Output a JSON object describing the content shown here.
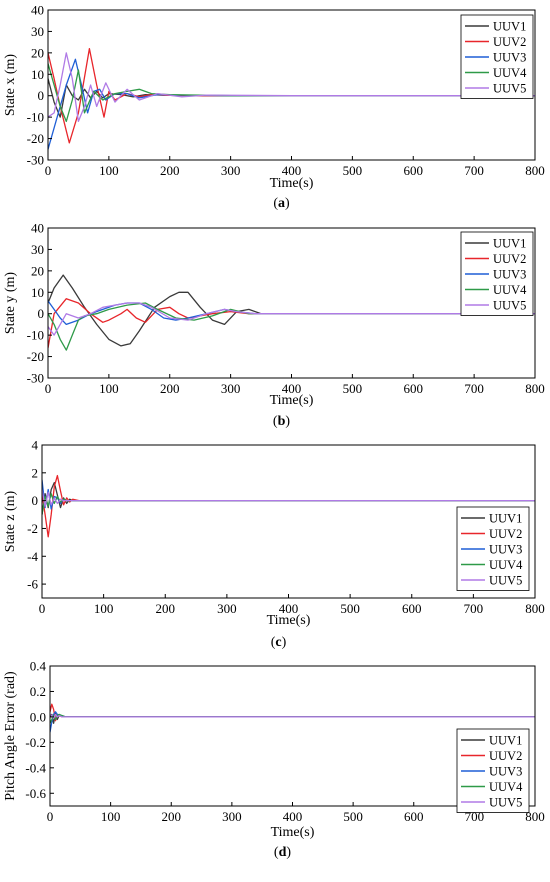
{
  "colors": {
    "UUV1": "#3a3a3a",
    "UUV2": "#e8262b",
    "UUV3": "#1f5fd6",
    "UUV4": "#2e9a48",
    "UUV5": "#b07ae6"
  },
  "chart_data": [
    {
      "type": "line",
      "panel_label": "(a)",
      "ylabel": "State x (m)",
      "xlabel": "Time(s)",
      "xlim": [
        0,
        800
      ],
      "ylim": [
        -30,
        40
      ],
      "xticks": [
        0,
        100,
        200,
        300,
        400,
        500,
        600,
        700,
        800
      ],
      "yticks": [
        -30,
        -20,
        -10,
        0,
        10,
        20,
        30,
        40
      ],
      "legend_position": "top-right",
      "series": [
        {
          "name": "UUV1",
          "x": [
            0,
            10,
            20,
            30,
            40,
            50,
            60,
            70,
            80,
            90,
            100,
            120,
            140,
            160,
            200,
            250,
            300,
            800
          ],
          "y": [
            8,
            -3,
            -10,
            5,
            0,
            -2,
            3,
            -1,
            2,
            -1,
            1,
            0.5,
            -0.5,
            0.5,
            0.2,
            0,
            0,
            0
          ]
        },
        {
          "name": "UUV2",
          "x": [
            0,
            10,
            20,
            35,
            50,
            68,
            80,
            92,
            100,
            110,
            130,
            150,
            170,
            200,
            250,
            300,
            400,
            800
          ],
          "y": [
            20,
            8,
            -5,
            -22,
            -8,
            22,
            5,
            -10,
            2,
            -2,
            1,
            -0.5,
            0.5,
            0.2,
            0,
            0,
            0,
            0
          ]
        },
        {
          "name": "UUV3",
          "x": [
            0,
            10,
            20,
            30,
            45,
            55,
            65,
            75,
            85,
            95,
            110,
            130,
            150,
            180,
            220,
            300,
            400,
            800
          ],
          "y": [
            -25,
            -15,
            -5,
            5,
            17,
            5,
            -8,
            2,
            3,
            -2,
            1,
            1,
            -1,
            0.5,
            0.3,
            0,
            0,
            0
          ]
        },
        {
          "name": "UUV4",
          "x": [
            0,
            10,
            20,
            30,
            40,
            50,
            60,
            75,
            90,
            110,
            130,
            150,
            170,
            200,
            250,
            300,
            400,
            800
          ],
          "y": [
            15,
            5,
            -5,
            -12,
            -2,
            12,
            -8,
            2,
            -2,
            1,
            2,
            3,
            1,
            0.5,
            0.3,
            0,
            0,
            0
          ]
        },
        {
          "name": "UUV5",
          "x": [
            0,
            10,
            20,
            30,
            40,
            50,
            60,
            70,
            80,
            95,
            110,
            130,
            150,
            180,
            220,
            260,
            400,
            800
          ],
          "y": [
            -10,
            -8,
            5,
            20,
            8,
            -12,
            -5,
            5,
            -5,
            6,
            -3,
            3,
            -2,
            1,
            -0.5,
            0.3,
            0,
            0
          ]
        }
      ]
    },
    {
      "type": "line",
      "panel_label": "(b)",
      "ylabel": "State y (m)",
      "xlabel": "Time(s)",
      "xlim": [
        0,
        800
      ],
      "ylim": [
        -30,
        40
      ],
      "xticks": [
        0,
        100,
        200,
        300,
        400,
        500,
        600,
        700,
        800
      ],
      "yticks": [
        -30,
        -20,
        -10,
        0,
        10,
        20,
        30,
        40
      ],
      "legend_position": "top-right",
      "series": [
        {
          "name": "UUV1",
          "x": [
            0,
            10,
            25,
            40,
            60,
            80,
            100,
            120,
            135,
            150,
            175,
            200,
            215,
            230,
            250,
            270,
            290,
            310,
            330,
            350,
            400,
            800
          ],
          "y": [
            5,
            12,
            18,
            12,
            3,
            -5,
            -12,
            -15,
            -14,
            -8,
            3,
            8,
            10,
            10,
            3,
            -3,
            -5,
            1,
            2,
            0,
            0,
            0
          ]
        },
        {
          "name": "UUV2",
          "x": [
            0,
            10,
            30,
            50,
            70,
            90,
            100,
            120,
            130,
            145,
            160,
            180,
            200,
            215,
            230,
            250,
            270,
            300,
            330,
            360,
            400,
            800
          ],
          "y": [
            -16,
            0,
            7,
            5,
            0,
            -4,
            -3,
            0,
            2,
            -2,
            -4,
            2,
            3,
            0,
            -2,
            -1,
            0,
            1,
            0,
            0,
            0,
            0
          ]
        },
        {
          "name": "UUV3",
          "x": [
            0,
            10,
            20,
            30,
            50,
            70,
            90,
            110,
            130,
            150,
            170,
            190,
            210,
            230,
            260,
            290,
            310,
            340,
            400,
            800
          ],
          "y": [
            6,
            2,
            -2,
            -5,
            -3,
            0,
            2,
            4,
            5,
            5,
            2,
            -2,
            -3,
            -2,
            0,
            2,
            1,
            0,
            0,
            0
          ]
        },
        {
          "name": "UUV4",
          "x": [
            0,
            10,
            20,
            30,
            40,
            50,
            60,
            80,
            100,
            130,
            160,
            180,
            210,
            240,
            270,
            300,
            330,
            360,
            400,
            800
          ],
          "y": [
            0,
            -5,
            -12,
            -17,
            -10,
            -3,
            -1,
            0,
            2,
            4,
            5,
            2,
            -2,
            -3,
            -1,
            2,
            0,
            0,
            0,
            0
          ]
        },
        {
          "name": "UUV5",
          "x": [
            0,
            10,
            20,
            30,
            50,
            70,
            90,
            110,
            130,
            150,
            170,
            200,
            230,
            260,
            290,
            310,
            340,
            400,
            800
          ],
          "y": [
            -6,
            -10,
            -5,
            0,
            -2,
            0,
            3,
            4,
            5,
            5,
            3,
            -2,
            -3,
            0,
            2,
            1,
            0,
            0,
            0
          ]
        }
      ]
    },
    {
      "type": "line",
      "panel_label": "(c)",
      "ylabel": "State z (m)",
      "xlabel": "Time(s)",
      "xlim": [
        0,
        800
      ],
      "ylim": [
        -7,
        4
      ],
      "xticks": [
        0,
        100,
        200,
        300,
        400,
        500,
        600,
        700,
        800
      ],
      "yticks": [
        -6,
        -4,
        -2,
        0,
        2,
        4
      ],
      "legend_position": "bottom-right",
      "series": [
        {
          "name": "UUV1",
          "x": [
            0,
            5,
            10,
            15,
            20,
            25,
            30,
            35,
            40,
            45,
            50,
            60,
            800
          ],
          "y": [
            -1,
            0.5,
            -0.5,
            0.8,
            1.3,
            0.4,
            -0.5,
            0.2,
            -0.2,
            0.1,
            0,
            0,
            0
          ]
        },
        {
          "name": "UUV2",
          "x": [
            0,
            5,
            10,
            15,
            20,
            25,
            30,
            35,
            40,
            45,
            50,
            60,
            800
          ],
          "y": [
            0.5,
            -1,
            -2.6,
            -1,
            1.0,
            1.8,
            0.7,
            -0.3,
            0.2,
            -0.1,
            0.1,
            0,
            0
          ]
        },
        {
          "name": "UUV3",
          "x": [
            0,
            5,
            10,
            15,
            20,
            25,
            30,
            35,
            40,
            50,
            60,
            800
          ],
          "y": [
            1.5,
            -0.5,
            0.8,
            -0.6,
            0.3,
            0.2,
            -0.2,
            0.1,
            0,
            0,
            0,
            0
          ]
        },
        {
          "name": "UUV4",
          "x": [
            0,
            5,
            10,
            15,
            20,
            25,
            30,
            35,
            40,
            50,
            60,
            800
          ],
          "y": [
            -1,
            0.3,
            -0.4,
            0.5,
            -0.2,
            0.3,
            -0.1,
            0.1,
            0,
            0,
            0,
            0
          ]
        },
        {
          "name": "UUV5",
          "x": [
            0,
            5,
            10,
            15,
            20,
            25,
            30,
            35,
            40,
            50,
            60,
            800
          ],
          "y": [
            0.8,
            -0.4,
            0.6,
            -0.3,
            0.2,
            -0.2,
            0.1,
            0,
            0,
            0,
            0,
            0
          ]
        }
      ]
    },
    {
      "type": "line",
      "panel_label": "(d)",
      "ylabel": "Pitch Angle Error (rad)",
      "xlabel": "Time(s)",
      "xlim": [
        0,
        800
      ],
      "ylim": [
        -0.7,
        0.4
      ],
      "xticks": [
        0,
        100,
        200,
        300,
        400,
        500,
        600,
        700,
        800
      ],
      "yticks": [
        -0.6,
        -0.4,
        -0.2,
        0.0,
        0.2,
        0.4
      ],
      "legend_position": "bottom-right",
      "series": [
        {
          "name": "UUV1",
          "x": [
            0,
            3,
            6,
            9,
            12,
            15,
            20,
            25,
            30,
            40,
            800
          ],
          "y": [
            0,
            0.02,
            -0.05,
            0.03,
            -0.02,
            0.01,
            0.01,
            0,
            0,
            0,
            0
          ]
        },
        {
          "name": "UUV2",
          "x": [
            0,
            3,
            6,
            9,
            12,
            15,
            20,
            25,
            30,
            40,
            800
          ],
          "y": [
            0.04,
            0.1,
            0.06,
            -0.03,
            0.02,
            0.01,
            0,
            0,
            0,
            0,
            0
          ]
        },
        {
          "name": "UUV3",
          "x": [
            0,
            3,
            6,
            9,
            12,
            15,
            20,
            25,
            30,
            40,
            800
          ],
          "y": [
            -0.12,
            -0.04,
            0.02,
            0.04,
            0.02,
            0.01,
            0.01,
            0,
            0,
            0,
            0
          ]
        },
        {
          "name": "UUV4",
          "x": [
            0,
            3,
            6,
            9,
            12,
            15,
            20,
            25,
            30,
            40,
            800
          ],
          "y": [
            -0.05,
            -0.02,
            0.01,
            -0.02,
            0.01,
            0.02,
            0.01,
            0,
            0,
            0,
            0
          ]
        },
        {
          "name": "UUV5",
          "x": [
            0,
            3,
            6,
            9,
            12,
            15,
            20,
            25,
            30,
            40,
            800
          ],
          "y": [
            0.02,
            0.01,
            -0.01,
            0.02,
            0,
            0.01,
            0,
            0,
            0,
            0,
            0
          ]
        }
      ]
    }
  ]
}
